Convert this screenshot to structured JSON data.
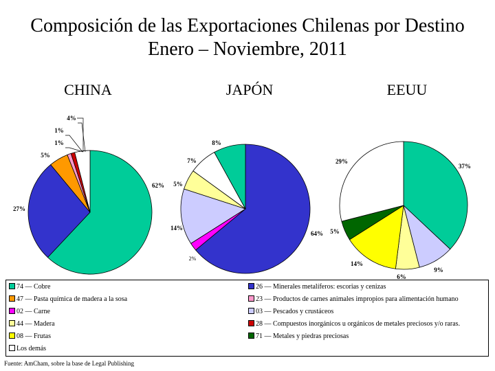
{
  "title_line1": "Composición de las Exportaciones Chilenas por Destino",
  "title_line2": "Enero – Noviembre, 2011",
  "source": "Fuente: AmCham, sobre la base de Legal Publishing",
  "legend": [
    {
      "label": "74 — Cobre",
      "color": "#00cc99"
    },
    {
      "label": "26 — Minerales metalíferos: escorias y cenizas",
      "color": "#3333cc"
    },
    {
      "label": "47 — Pasta química de madera a la sosa",
      "color": "#ff9900"
    },
    {
      "label": "23 — Productos de carnes animales impropios para alimentación humano",
      "color": "#ff99cc"
    },
    {
      "label": "02 — Carne",
      "color": "#ff00ff"
    },
    {
      "label": "03 — Pescados y crustáceos",
      "color": "#ccccff"
    },
    {
      "label": "44 — Madera",
      "color": "#ffff99"
    },
    {
      "label": "28 — Compuestos inorgánicos u orgánicos de metales preciosos y/o raras.",
      "color": "#cc0000"
    },
    {
      "label": "08 — Frutas",
      "color": "#ffff00"
    },
    {
      "label": "71 — Metales y piedras preciosas",
      "color": "#006600"
    },
    {
      "label": "Los demás",
      "color": "#ffffff"
    }
  ],
  "chart_data": [
    {
      "type": "pie",
      "title": "CHINA",
      "slices": [
        {
          "name": "74 — Cobre",
          "value": 62,
          "label": "62%",
          "color": "#00cc99"
        },
        {
          "name": "26 — Minerales metalíferos: escorias y cenizas",
          "value": 27,
          "label": "27%",
          "color": "#3333cc"
        },
        {
          "name": "47 — Pasta química de madera a la sosa",
          "value": 5,
          "label": "5%",
          "color": "#ff9900"
        },
        {
          "name": "23 — Productos de carnes animales impropios para alimentación humano",
          "value": 1,
          "label": "1%",
          "color": "#ff99cc"
        },
        {
          "name": "28 — Compuestos inorgánicos u orgánicos de metales preciosos y/o raras.",
          "value": 1,
          "label": "1%",
          "color": "#cc0000"
        },
        {
          "name": "Los demás",
          "value": 4,
          "label": "4%",
          "color": "#ffffff"
        }
      ]
    },
    {
      "type": "pie",
      "title": "JAPÓN",
      "slices": [
        {
          "name": "26 — Minerales metalíferos: escorias y cenizas",
          "value": 64,
          "label": "64%",
          "color": "#3333cc"
        },
        {
          "name": "02 — Carne",
          "value": 2,
          "label": "2%",
          "color": "#ff00ff"
        },
        {
          "name": "03 — Pescados y crustáceos",
          "value": 14,
          "label": "14%",
          "color": "#ccccff"
        },
        {
          "name": "44 — Madera",
          "value": 5,
          "label": "5%",
          "color": "#ffff99"
        },
        {
          "name": "Los demás",
          "value": 7,
          "label": "7%",
          "color": "#ffffff"
        },
        {
          "name": "74 — Cobre",
          "value": 8,
          "label": "8%",
          "color": "#00cc99"
        }
      ]
    },
    {
      "type": "pie",
      "title": "EEUU",
      "slices": [
        {
          "name": "74 — Cobre",
          "value": 37,
          "label": "37%",
          "color": "#00cc99"
        },
        {
          "name": "03 — Pescados y crustáceos",
          "value": 9,
          "label": "9%",
          "color": "#ccccff"
        },
        {
          "name": "44 — Madera",
          "value": 6,
          "label": "6%",
          "color": "#ffff99"
        },
        {
          "name": "08 — Frutas",
          "value": 14,
          "label": "14%",
          "color": "#ffff00"
        },
        {
          "name": "71 — Metales y piedras preciosas",
          "value": 5,
          "label": "5%",
          "color": "#006600"
        },
        {
          "name": "Los demás",
          "value": 29,
          "label": "29%",
          "color": "#ffffff"
        }
      ]
    }
  ]
}
